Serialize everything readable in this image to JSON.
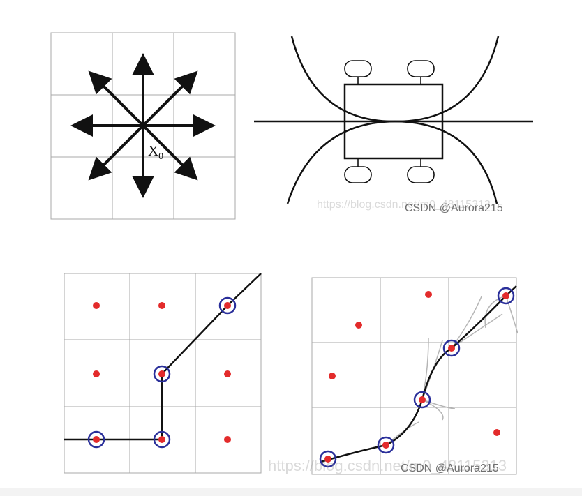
{
  "panels": {
    "neighborhood": {
      "grid": {
        "rows": 3,
        "cols": 3
      },
      "center_label": "X",
      "center_subscript": "0",
      "arrow_directions": [
        "up",
        "down",
        "left",
        "right",
        "up-left",
        "up-right",
        "down-left",
        "down-right"
      ]
    },
    "vehicle": {
      "wheels": 4,
      "turning_arcs": 4
    },
    "grid_path": {
      "grid": {
        "rows": 3,
        "cols": 3
      },
      "node_color": "#e32b2b",
      "circle_color": "#2a2f9a"
    },
    "smooth_path": {
      "grid": {
        "rows": 3,
        "cols": 3
      },
      "node_color": "#e32b2b",
      "circle_color": "#2a2f9a"
    }
  },
  "watermarks": {
    "top": {
      "faint": "https://blog.csdn.net/m0_48115313",
      "strong": "CSDN @Aurora215"
    },
    "bottom": {
      "faint": "https://blog.csdn.net/m0_48115313",
      "strong": "CSDN @Aurora215"
    }
  },
  "colors": {
    "grid_line": "#a8a8a8",
    "stroke": "#111111",
    "red_dot": "#e32b2b",
    "blue_ring": "#2a2f9a",
    "soft_curve": "#b5b5b5"
  }
}
